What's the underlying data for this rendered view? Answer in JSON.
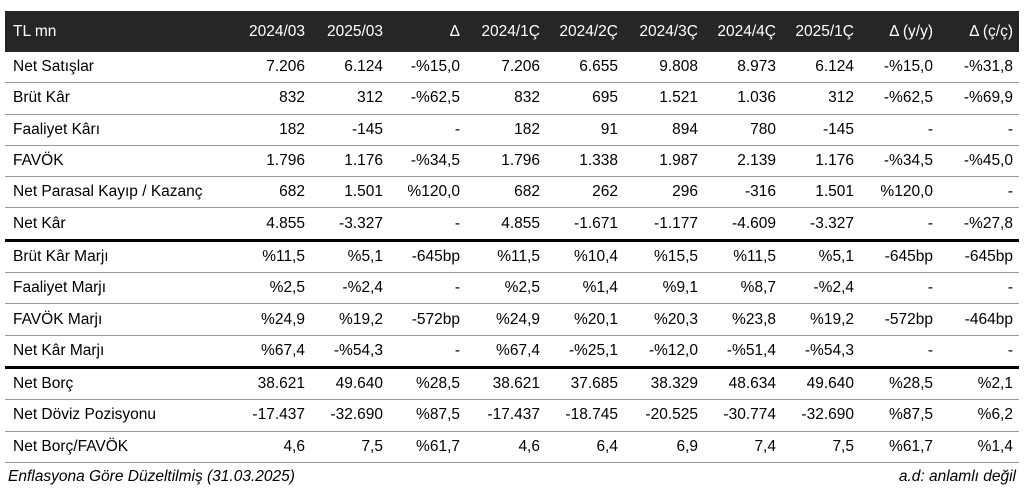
{
  "table": {
    "headers": [
      "TL mn",
      "2024/03",
      "2025/03",
      "Δ",
      "2024/1Ç",
      "2024/2Ç",
      "2024/3Ç",
      "2024/4Ç",
      "2025/1Ç",
      "Δ (y/y)",
      "Δ (ç/ç)"
    ],
    "rows": [
      {
        "label": "Net Satışlar",
        "cells": [
          "7.206",
          "6.124",
          "-%15,0",
          "7.206",
          "6.655",
          "9.808",
          "8.973",
          "6.124",
          "-%15,0",
          "-%31,8"
        ]
      },
      {
        "label": "Brüt Kâr",
        "cells": [
          "832",
          "312",
          "-%62,5",
          "832",
          "695",
          "1.521",
          "1.036",
          "312",
          "-%62,5",
          "-%69,9"
        ]
      },
      {
        "label": "Faaliyet Kârı",
        "cells": [
          "182",
          "-145",
          "-",
          "182",
          "91",
          "894",
          "780",
          "-145",
          "-",
          "-"
        ]
      },
      {
        "label": "FAVÖK",
        "cells": [
          "1.796",
          "1.176",
          "-%34,5",
          "1.796",
          "1.338",
          "1.987",
          "2.139",
          "1.176",
          "-%34,5",
          "-%45,0"
        ]
      },
      {
        "label": "Net Parasal Kayıp / Kazanç",
        "cells": [
          "682",
          "1.501",
          "%120,0",
          "682",
          "262",
          "296",
          "-316",
          "1.501",
          "%120,0",
          "-"
        ]
      },
      {
        "label": "Net Kâr",
        "cells": [
          "4.855",
          "-3.327",
          "-",
          "4.855",
          "-1.671",
          "-1.177",
          "-4.609",
          "-3.327",
          "-",
          "-%27,8"
        ]
      },
      {
        "label": "Brüt Kâr Marjı",
        "cells": [
          "%11,5",
          "%5,1",
          "-645bp",
          "%11,5",
          "%10,4",
          "%15,5",
          "%11,5",
          "%5,1",
          "-645bp",
          "-645bp"
        ]
      },
      {
        "label": "Faaliyet Marjı",
        "cells": [
          "%2,5",
          "-%2,4",
          "-",
          "%2,5",
          "%1,4",
          "%9,1",
          "%8,7",
          "-%2,4",
          "-",
          "-"
        ]
      },
      {
        "label": "FAVÖK Marjı",
        "cells": [
          "%24,9",
          "%19,2",
          "-572bp",
          "%24,9",
          "%20,1",
          "%20,3",
          "%23,8",
          "%19,2",
          "-572bp",
          "-464bp"
        ]
      },
      {
        "label": "Net Kâr Marjı",
        "cells": [
          "%67,4",
          "-%54,3",
          "-",
          "%67,4",
          "-%25,1",
          "-%12,0",
          "-%51,4",
          "-%54,3",
          "-",
          "-"
        ]
      },
      {
        "label": "Net Borç",
        "cells": [
          "38.621",
          "49.640",
          "%28,5",
          "38.621",
          "37.685",
          "38.329",
          "48.634",
          "49.640",
          "%28,5",
          "%2,1"
        ]
      },
      {
        "label": "Net Döviz Pozisyonu",
        "cells": [
          "-17.437",
          "-32.690",
          "%87,5",
          "-17.437",
          "-18.745",
          "-20.525",
          "-30.774",
          "-32.690",
          "%87,5",
          "%6,2"
        ]
      },
      {
        "label": "Net Borç/FAVÖK",
        "cells": [
          "4,6",
          "7,5",
          "%61,7",
          "4,6",
          "6,4",
          "6,9",
          "7,4",
          "7,5",
          "%61,7",
          "%1,4"
        ]
      }
    ]
  },
  "footer": {
    "left": "Enflasyona Göre Düzeltilmiş (31.03.2025)",
    "right": "a.d: anlamlı değil"
  },
  "colors": {
    "header_bg": "#262626",
    "header_text": "#ffffff",
    "separator": "#000000"
  }
}
